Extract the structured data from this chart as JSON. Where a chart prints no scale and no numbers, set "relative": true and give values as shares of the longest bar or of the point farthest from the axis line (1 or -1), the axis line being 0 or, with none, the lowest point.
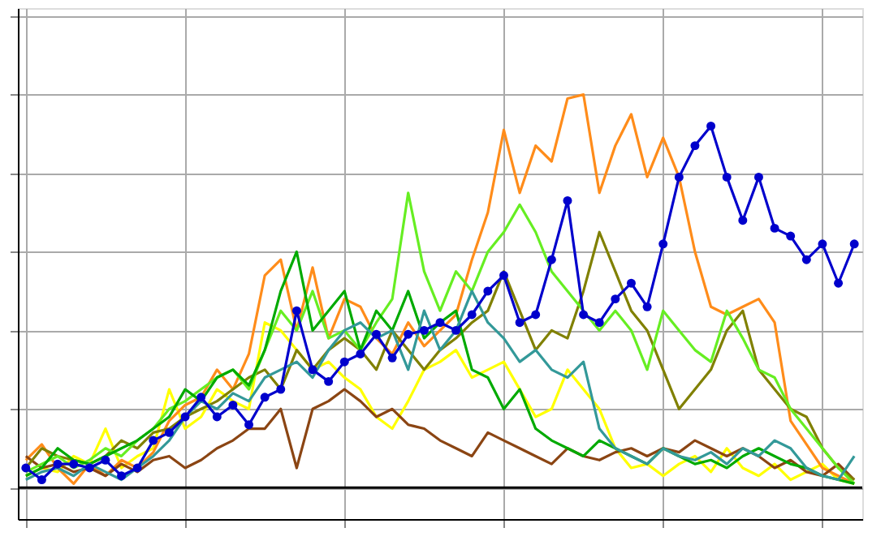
{
  "chart_data": {
    "type": "line",
    "relative": true,
    "grid": true,
    "line_style": "solid",
    "categories": [
      null,
      null,
      null,
      null,
      null,
      null,
      null,
      null,
      null,
      null,
      null,
      null,
      null,
      null,
      null,
      null,
      null,
      null,
      null,
      null,
      null,
      null,
      null,
      null,
      null,
      null,
      null,
      null,
      null,
      null,
      null,
      null,
      null,
      null,
      null,
      null,
      null,
      null,
      null,
      null,
      null,
      null,
      null,
      null,
      null,
      null,
      null,
      null,
      null,
      null,
      null,
      null,
      null
    ],
    "series": [
      {
        "color": "#ffff00",
        "marker": "none",
        "values": [
          0.03,
          0.05,
          0.04,
          0.08,
          0.06,
          0.15,
          0.05,
          0.08,
          0.1,
          0.25,
          0.15,
          0.18,
          0.25,
          0.22,
          0.2,
          0.42,
          0.4,
          0.35,
          0.3,
          0.32,
          0.28,
          0.25,
          0.18,
          0.15,
          0.22,
          0.3,
          0.32,
          0.35,
          0.28,
          0.3,
          0.32,
          0.25,
          0.18,
          0.2,
          0.3,
          0.25,
          0.2,
          0.1,
          0.05,
          0.06,
          0.03,
          0.06,
          0.08,
          0.04,
          0.1,
          0.05,
          0.03,
          0.06,
          0.02,
          0.04,
          0.06,
          0.02,
          0.01
        ]
      },
      {
        "color": "#ff8c1a",
        "marker": "none",
        "values": [
          0.07,
          0.11,
          0.05,
          0.01,
          0.06,
          0.03,
          0.07,
          0.05,
          0.09,
          0.17,
          0.21,
          0.23,
          0.3,
          0.25,
          0.34,
          0.54,
          0.58,
          0.4,
          0.56,
          0.38,
          0.48,
          0.46,
          0.38,
          0.34,
          0.42,
          0.36,
          0.4,
          0.44,
          0.58,
          0.7,
          0.91,
          0.75,
          0.87,
          0.83,
          0.99,
          1.0,
          0.75,
          0.87,
          0.95,
          0.79,
          0.89,
          0.79,
          0.6,
          0.46,
          0.44,
          0.46,
          0.48,
          0.42,
          0.17,
          0.11,
          0.05,
          0.03,
          0.01
        ]
      },
      {
        "color": "#8b4513",
        "marker": "none",
        "values": [
          0.08,
          0.05,
          0.06,
          0.04,
          0.05,
          0.03,
          0.06,
          0.04,
          0.07,
          0.08,
          0.05,
          0.07,
          0.1,
          0.12,
          0.15,
          0.15,
          0.2,
          0.05,
          0.2,
          0.22,
          0.25,
          0.22,
          0.18,
          0.2,
          0.16,
          0.15,
          0.12,
          0.1,
          0.08,
          0.14,
          0.12,
          0.1,
          0.08,
          0.06,
          0.1,
          0.08,
          0.07,
          0.09,
          0.1,
          0.08,
          0.1,
          0.09,
          0.12,
          0.1,
          0.08,
          0.1,
          0.08,
          0.05,
          0.07,
          0.04,
          0.03,
          0.06,
          0.02
        ]
      },
      {
        "color": "#808000",
        "marker": "none",
        "values": [
          0.05,
          0.1,
          0.08,
          0.07,
          0.06,
          0.08,
          0.12,
          0.1,
          0.14,
          0.15,
          0.18,
          0.2,
          0.22,
          0.25,
          0.28,
          0.3,
          0.25,
          0.35,
          0.3,
          0.35,
          0.38,
          0.35,
          0.3,
          0.4,
          0.35,
          0.3,
          0.35,
          0.38,
          0.42,
          0.45,
          0.55,
          0.45,
          0.35,
          0.4,
          0.38,
          0.5,
          0.65,
          0.55,
          0.45,
          0.4,
          0.3,
          0.2,
          0.25,
          0.3,
          0.4,
          0.45,
          0.3,
          0.25,
          0.2,
          0.18,
          0.1,
          0.05,
          0.02
        ]
      },
      {
        "color": "#66ee22",
        "marker": "none",
        "values": [
          0.04,
          0.06,
          0.08,
          0.05,
          0.07,
          0.1,
          0.08,
          0.12,
          0.15,
          0.2,
          0.22,
          0.25,
          0.28,
          0.3,
          0.25,
          0.35,
          0.45,
          0.4,
          0.5,
          0.38,
          0.4,
          0.35,
          0.42,
          0.48,
          0.75,
          0.55,
          0.45,
          0.55,
          0.5,
          0.6,
          0.65,
          0.72,
          0.65,
          0.55,
          0.5,
          0.45,
          0.4,
          0.45,
          0.4,
          0.3,
          0.45,
          0.4,
          0.35,
          0.32,
          0.45,
          0.38,
          0.3,
          0.28,
          0.2,
          0.15,
          0.1,
          0.05,
          0.01
        ]
      },
      {
        "color": "#00aa00",
        "marker": "none",
        "values": [
          0.03,
          0.05,
          0.1,
          0.07,
          0.06,
          0.08,
          0.1,
          0.12,
          0.15,
          0.18,
          0.25,
          0.22,
          0.28,
          0.3,
          0.26,
          0.35,
          0.5,
          0.6,
          0.4,
          0.45,
          0.5,
          0.35,
          0.45,
          0.4,
          0.5,
          0.38,
          0.42,
          0.45,
          0.3,
          0.28,
          0.2,
          0.25,
          0.15,
          0.12,
          0.1,
          0.08,
          0.12,
          0.1,
          0.08,
          0.06,
          0.1,
          0.08,
          0.06,
          0.07,
          0.05,
          0.08,
          0.1,
          0.08,
          0.06,
          0.05,
          0.03,
          0.02,
          0.01
        ]
      },
      {
        "color": "#339999",
        "marker": "none",
        "values": [
          0.02,
          0.04,
          0.05,
          0.03,
          0.06,
          0.04,
          0.02,
          0.05,
          0.08,
          0.12,
          0.18,
          0.22,
          0.2,
          0.24,
          0.22,
          0.28,
          0.3,
          0.32,
          0.28,
          0.35,
          0.4,
          0.42,
          0.38,
          0.4,
          0.3,
          0.45,
          0.35,
          0.4,
          0.5,
          0.42,
          0.38,
          0.32,
          0.35,
          0.3,
          0.28,
          0.32,
          0.15,
          0.1,
          0.08,
          0.06,
          0.1,
          0.08,
          0.07,
          0.09,
          0.06,
          0.1,
          0.08,
          0.12,
          0.1,
          0.05,
          0.03,
          0.02,
          0.08
        ]
      },
      {
        "color": "#0000cc",
        "marker": "circle",
        "values": [
          0.05,
          0.02,
          0.06,
          0.06,
          0.05,
          0.07,
          0.03,
          0.05,
          0.12,
          0.14,
          0.18,
          0.23,
          0.18,
          0.21,
          0.16,
          0.23,
          0.25,
          0.45,
          0.3,
          0.27,
          0.32,
          0.34,
          0.39,
          0.33,
          0.39,
          0.4,
          0.42,
          0.4,
          0.44,
          0.5,
          0.54,
          0.42,
          0.44,
          0.58,
          0.73,
          0.44,
          0.42,
          0.48,
          0.52,
          0.46,
          0.62,
          0.79,
          0.87,
          0.92,
          0.79,
          0.68,
          0.79,
          0.66,
          0.64,
          0.58,
          0.62,
          0.52,
          0.62
        ]
      }
    ]
  }
}
